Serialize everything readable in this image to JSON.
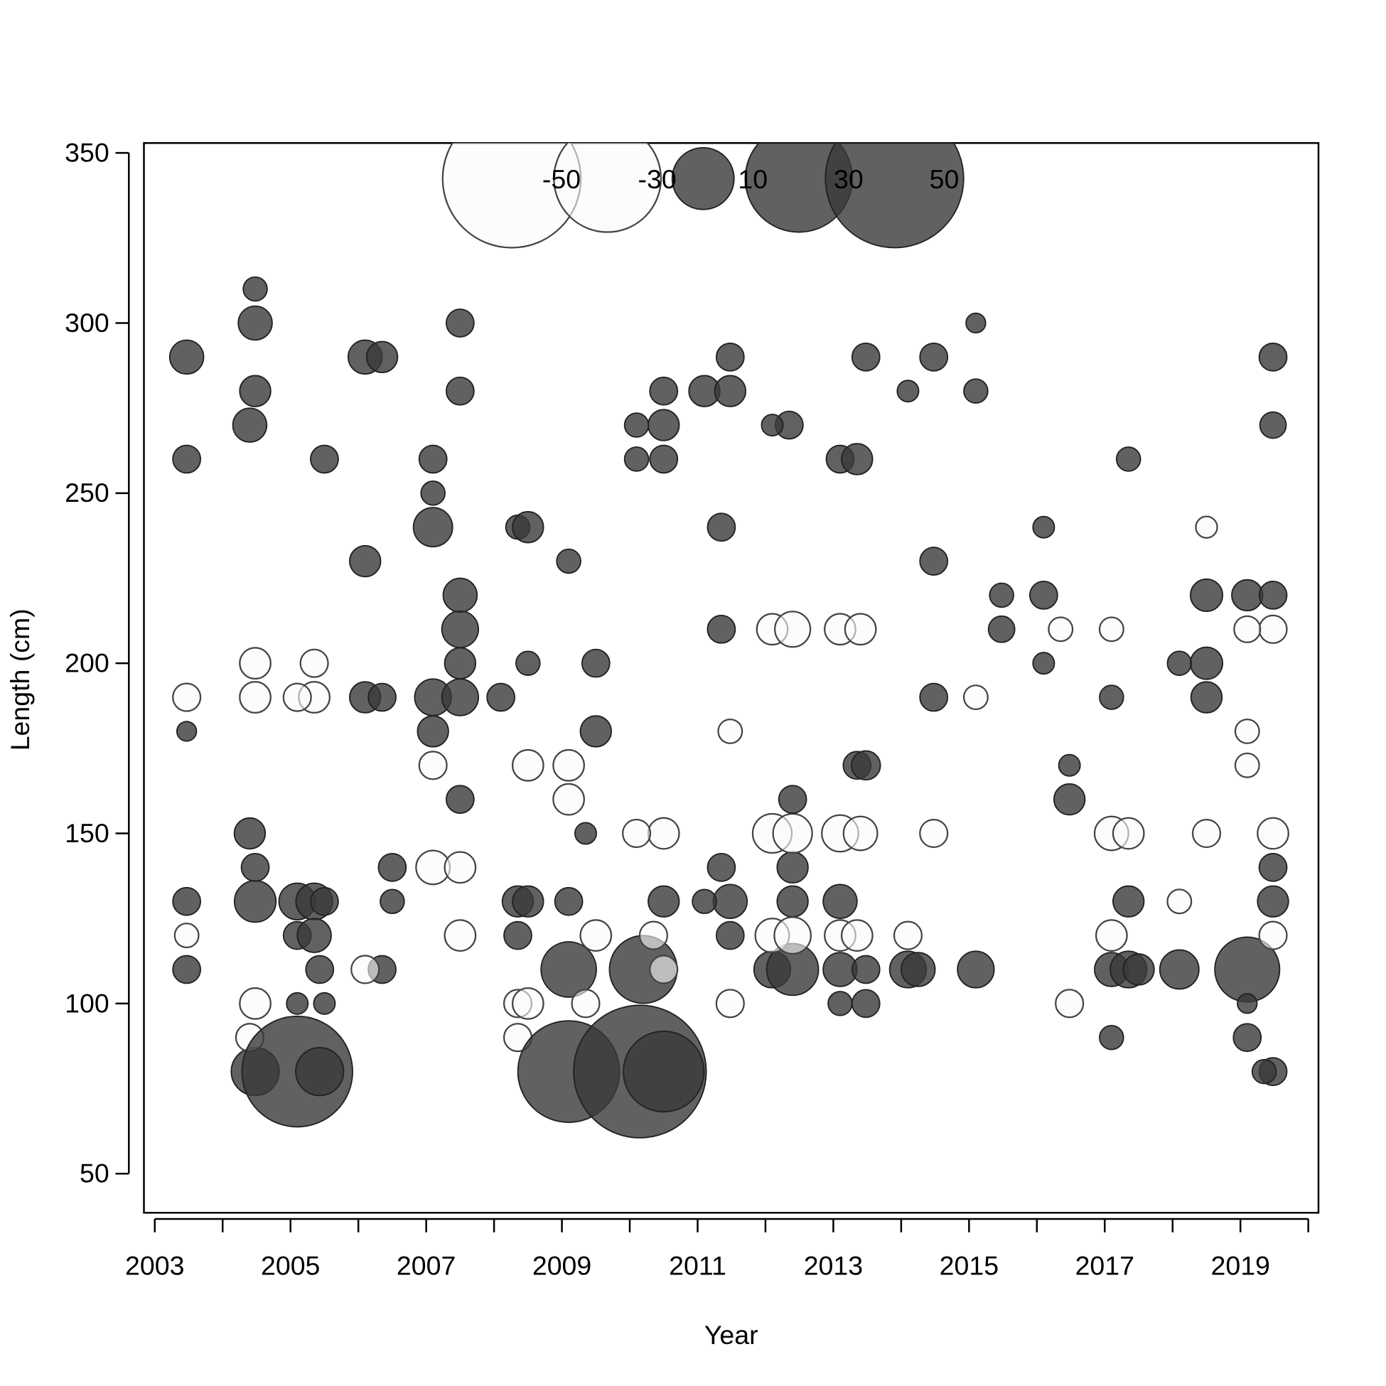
{
  "chart_data": {
    "type": "bubble",
    "xlabel": "Year",
    "ylabel": "Length (cm)",
    "xlim": [
      2002.84,
      2020.15
    ],
    "ylim": [
      38.5,
      352.9
    ],
    "xticks": [
      2003,
      2005,
      2007,
      2009,
      2011,
      2013,
      2015,
      2017,
      2019
    ],
    "minor_xticks": [
      2004,
      2006,
      2008,
      2010,
      2012,
      2014,
      2016,
      2018,
      2020
    ],
    "yticks": [
      50,
      100,
      150,
      200,
      250,
      300,
      350
    ],
    "positive_color": "#3a3a3a",
    "negative_color": "#fafafa",
    "legend": {
      "values": [
        -50,
        -30,
        10,
        30,
        50
      ]
    },
    "points": [
      [
        2003.47,
        290,
        3
      ],
      [
        2003.47,
        260,
        2
      ],
      [
        2003.47,
        130,
        2
      ],
      [
        2003.47,
        110,
        2
      ],
      [
        2003.47,
        190,
        -2
      ],
      [
        2003.47,
        120,
        -1.5
      ],
      [
        2003.47,
        180,
        1
      ],
      [
        2004.4,
        270,
        3
      ],
      [
        2004.48,
        300,
        3
      ],
      [
        2004.48,
        310,
        1.5
      ],
      [
        2004.48,
        280,
        2.5
      ],
      [
        2004.4,
        150,
        2.5
      ],
      [
        2004.48,
        140,
        2
      ],
      [
        2004.48,
        130,
        4.5
      ],
      [
        2004.48,
        80,
        6
      ],
      [
        2004.4,
        90,
        -2
      ],
      [
        2004.48,
        100,
        -2.5
      ],
      [
        2004.48,
        190,
        -2.5
      ],
      [
        2004.48,
        200,
        -2.5
      ],
      [
        2005.1,
        80,
        32
      ],
      [
        2005.1,
        130,
        3.5
      ],
      [
        2005.35,
        130,
        3.5
      ],
      [
        2005.5,
        130,
        2
      ],
      [
        2005.1,
        120,
        2
      ],
      [
        2005.35,
        120,
        3
      ],
      [
        2005.43,
        80,
        6
      ],
      [
        2005.43,
        110,
        2
      ],
      [
        2005.5,
        100,
        1.2
      ],
      [
        2005.1,
        100,
        1.2
      ],
      [
        2005.35,
        190,
        -2.5
      ],
      [
        2005.35,
        200,
        -2
      ],
      [
        2005.1,
        190,
        -2
      ],
      [
        2005.5,
        260,
        2
      ],
      [
        2006.1,
        290,
        3
      ],
      [
        2006.35,
        290,
        2.5
      ],
      [
        2006.1,
        230,
        2.5
      ],
      [
        2006.1,
        190,
        2.5
      ],
      [
        2006.35,
        190,
        2
      ],
      [
        2006.5,
        140,
        2
      ],
      [
        2006.35,
        110,
        2
      ],
      [
        2006.5,
        130,
        1.5
      ],
      [
        2006.1,
        110,
        -2
      ],
      [
        2007.1,
        240,
        4
      ],
      [
        2007.1,
        260,
        2
      ],
      [
        2007.1,
        250,
        1.5
      ],
      [
        2007.1,
        190,
        3.5
      ],
      [
        2007.1,
        180,
        2.5
      ],
      [
        2007.5,
        190,
        3.5
      ],
      [
        2007.5,
        210,
        3.5
      ],
      [
        2007.5,
        220,
        3
      ],
      [
        2007.5,
        200,
        2.5
      ],
      [
        2007.5,
        300,
        2
      ],
      [
        2007.5,
        280,
        2
      ],
      [
        2007.5,
        160,
        2
      ],
      [
        2007.1,
        140,
        -3
      ],
      [
        2007.5,
        140,
        -2.5
      ],
      [
        2007.5,
        120,
        -2.5
      ],
      [
        2007.1,
        170,
        -2
      ],
      [
        2008.1,
        190,
        2
      ],
      [
        2008.35,
        120,
        2
      ],
      [
        2008.35,
        240,
        1.5
      ],
      [
        2008.5,
        240,
        2.5
      ],
      [
        2008.35,
        130,
        2.5
      ],
      [
        2008.5,
        130,
        2.5
      ],
      [
        2008.5,
        170,
        -2.5
      ],
      [
        2008.35,
        100,
        -2
      ],
      [
        2008.5,
        100,
        -2.5
      ],
      [
        2008.35,
        90,
        -2
      ],
      [
        2008.5,
        200,
        1.5
      ],
      [
        2009.1,
        110,
        8
      ],
      [
        2009.1,
        80,
        27
      ],
      [
        2009.1,
        130,
        2
      ],
      [
        2009.1,
        230,
        1.5
      ],
      [
        2009.1,
        160,
        -2.5
      ],
      [
        2009.1,
        170,
        -2.5
      ],
      [
        2009.5,
        180,
        2.5
      ],
      [
        2009.5,
        200,
        2
      ],
      [
        2009.35,
        150,
        1.2
      ],
      [
        2009.5,
        120,
        -2.5
      ],
      [
        2009.35,
        100,
        -2
      ],
      [
        2010.15,
        80,
        46
      ],
      [
        2010.2,
        110,
        12
      ],
      [
        2010.5,
        80,
        17
      ],
      [
        2010.5,
        110,
        -2
      ],
      [
        2010.5,
        130,
        2.5
      ],
      [
        2010.5,
        270,
        2.5
      ],
      [
        2010.5,
        280,
        2
      ],
      [
        2010.5,
        260,
        2
      ],
      [
        2010.1,
        270,
        1.5
      ],
      [
        2010.1,
        260,
        1.5
      ],
      [
        2010.5,
        150,
        -2.5
      ],
      [
        2010.1,
        150,
        -2
      ],
      [
        2010.35,
        120,
        -2
      ],
      [
        2011.1,
        280,
        2.5
      ],
      [
        2011.48,
        280,
        2.5
      ],
      [
        2011.48,
        290,
        2
      ],
      [
        2011.48,
        130,
        3
      ],
      [
        2011.35,
        140,
        2
      ],
      [
        2011.35,
        210,
        2
      ],
      [
        2011.48,
        120,
        2
      ],
      [
        2011.1,
        130,
        1.5
      ],
      [
        2011.35,
        240,
        2
      ],
      [
        2011.48,
        100,
        -2
      ],
      [
        2011.48,
        180,
        -1.5
      ],
      [
        2012.1,
        110,
        3.5
      ],
      [
        2012.4,
        110,
        7
      ],
      [
        2012.4,
        140,
        2.5
      ],
      [
        2012.4,
        130,
        2.5
      ],
      [
        2012.35,
        270,
        2
      ],
      [
        2012.1,
        270,
        1.2
      ],
      [
        2012.1,
        150,
        -4
      ],
      [
        2012.4,
        150,
        -4
      ],
      [
        2012.1,
        120,
        -3
      ],
      [
        2012.4,
        120,
        -3.5
      ],
      [
        2012.1,
        210,
        -2.5
      ],
      [
        2012.4,
        210,
        -3.3
      ],
      [
        2012.4,
        160,
        2
      ],
      [
        2013.1,
        130,
        3
      ],
      [
        2013.1,
        110,
        3
      ],
      [
        2013.48,
        110,
        2
      ],
      [
        2013.1,
        260,
        2
      ],
      [
        2013.35,
        260,
        2.5
      ],
      [
        2013.48,
        290,
        2
      ],
      [
        2013.35,
        170,
        2
      ],
      [
        2013.48,
        170,
        2.2
      ],
      [
        2013.1,
        100,
        1.5
      ],
      [
        2013.48,
        100,
        2
      ],
      [
        2013.1,
        150,
        -3.5
      ],
      [
        2013.4,
        150,
        -3
      ],
      [
        2013.1,
        210,
        -2.5
      ],
      [
        2013.4,
        210,
        -2.5
      ],
      [
        2013.1,
        120,
        -2.5
      ],
      [
        2013.35,
        120,
        -2.5
      ],
      [
        2014.1,
        110,
        3.5
      ],
      [
        2014.25,
        110,
        3
      ],
      [
        2014.48,
        290,
        2
      ],
      [
        2014.48,
        230,
        2
      ],
      [
        2014.48,
        190,
        2
      ],
      [
        2014.1,
        280,
        1.2
      ],
      [
        2014.48,
        150,
        -2
      ],
      [
        2014.1,
        120,
        -2
      ],
      [
        2015.1,
        110,
        3.5
      ],
      [
        2015.1,
        280,
        1.5
      ],
      [
        2015.1,
        300,
        1
      ],
      [
        2015.48,
        220,
        1.5
      ],
      [
        2015.48,
        210,
        1.8
      ],
      [
        2015.1,
        190,
        -1.5
      ],
      [
        2016.1,
        220,
        2
      ],
      [
        2016.1,
        240,
        1.2
      ],
      [
        2016.48,
        160,
        2.5
      ],
      [
        2016.48,
        170,
        1.2
      ],
      [
        2016.1,
        200,
        1.2
      ],
      [
        2016.35,
        210,
        -1.5
      ],
      [
        2016.48,
        100,
        -2
      ],
      [
        2017.1,
        110,
        3
      ],
      [
        2017.35,
        110,
        3.5
      ],
      [
        2017.5,
        110,
        2.5
      ],
      [
        2017.1,
        90,
        1.5
      ],
      [
        2017.1,
        190,
        1.5
      ],
      [
        2017.35,
        130,
        2.5
      ],
      [
        2017.1,
        150,
        -3
      ],
      [
        2017.35,
        150,
        -2.5
      ],
      [
        2017.1,
        120,
        -2.5
      ],
      [
        2017.35,
        260,
        1.5
      ],
      [
        2017.1,
        210,
        -1.5
      ],
      [
        2018.1,
        110,
        4
      ],
      [
        2018.5,
        220,
        2.7
      ],
      [
        2018.5,
        200,
        2.7
      ],
      [
        2018.5,
        190,
        2.5
      ],
      [
        2018.1,
        200,
        1.5
      ],
      [
        2018.5,
        150,
        -2
      ],
      [
        2018.5,
        240,
        -1.2
      ],
      [
        2018.1,
        130,
        -1.5
      ],
      [
        2019.1,
        110,
        11
      ],
      [
        2019.1,
        220,
        2.5
      ],
      [
        2019.48,
        220,
        2
      ],
      [
        2019.48,
        290,
        2
      ],
      [
        2019.48,
        270,
        1.8
      ],
      [
        2019.48,
        130,
        2.5
      ],
      [
        2019.48,
        140,
        2
      ],
      [
        2019.1,
        90,
        2
      ],
      [
        2019.48,
        80,
        2
      ],
      [
        2019.35,
        80,
        1.5
      ],
      [
        2019.1,
        100,
        1
      ],
      [
        2019.48,
        150,
        -2.5
      ],
      [
        2019.48,
        120,
        -2
      ],
      [
        2019.48,
        210,
        -2
      ],
      [
        2019.1,
        210,
        -1.8
      ],
      [
        2019.1,
        170,
        -1.5
      ],
      [
        2019.1,
        180,
        -1.5
      ]
    ]
  }
}
